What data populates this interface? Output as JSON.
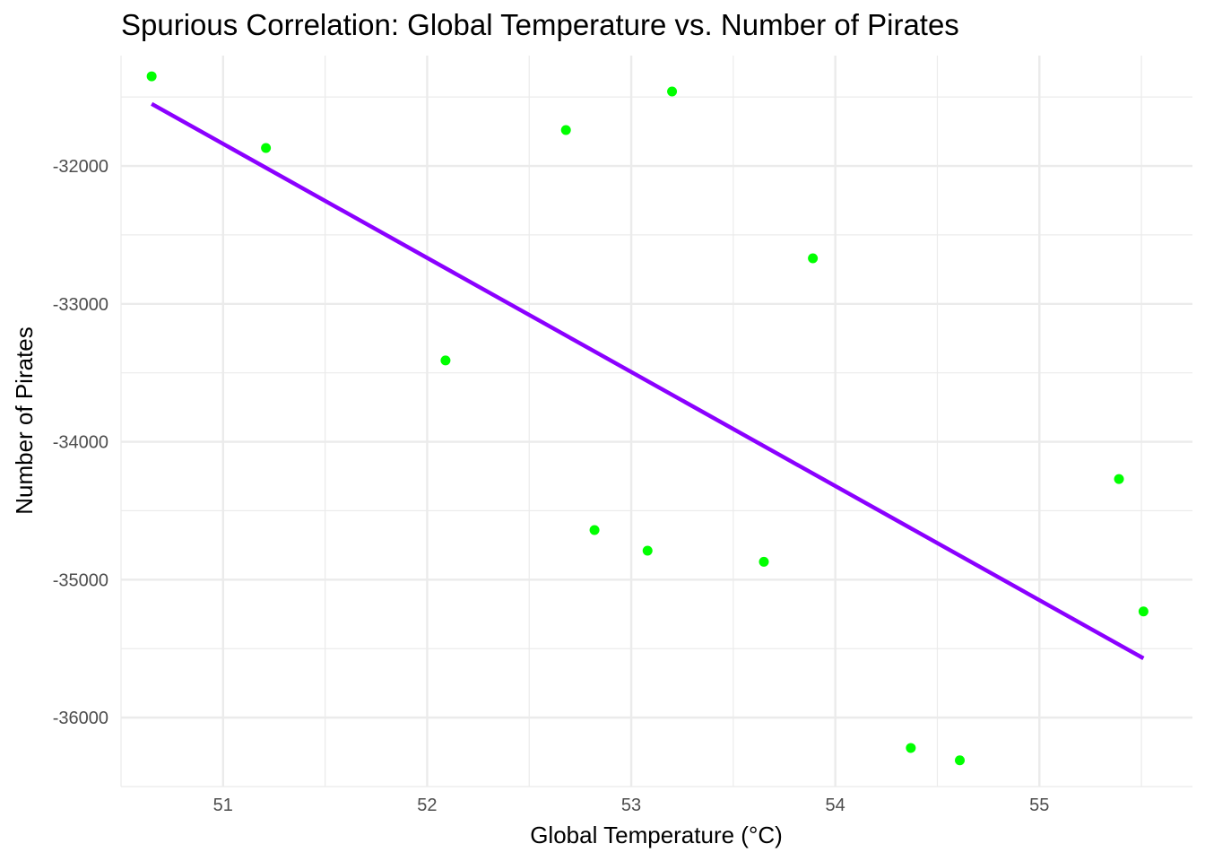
{
  "chart_data": {
    "type": "scatter",
    "title": "Spurious Correlation: Global Temperature vs. Number of Pirates",
    "xlabel": "Global Temperature (°C)",
    "ylabel": "Number of Pirates",
    "xlim": [
      50.5,
      55.75
    ],
    "ylim": [
      -36500,
      -31200
    ],
    "x_ticks": [
      51,
      52,
      53,
      54,
      55
    ],
    "x_tick_labels": [
      "51",
      "52",
      "53",
      "54",
      "55"
    ],
    "y_ticks": [
      -32000,
      -33000,
      -34000,
      -35000,
      -36000
    ],
    "y_tick_labels": [
      "-32000",
      "-33000",
      "-34000",
      "-35000",
      "-36000"
    ],
    "grid": true,
    "legend": "none",
    "point_color": "#00ff00",
    "line_color": "#8b00ff",
    "points": [
      {
        "x": 50.65,
        "y": -31350
      },
      {
        "x": 51.21,
        "y": -31870
      },
      {
        "x": 52.09,
        "y": -33410
      },
      {
        "x": 52.68,
        "y": -31740
      },
      {
        "x": 52.82,
        "y": -34640
      },
      {
        "x": 53.08,
        "y": -34790
      },
      {
        "x": 53.2,
        "y": -31460
      },
      {
        "x": 53.65,
        "y": -34870
      },
      {
        "x": 53.89,
        "y": -32670
      },
      {
        "x": 54.37,
        "y": -36220
      },
      {
        "x": 54.61,
        "y": -36310
      },
      {
        "x": 55.39,
        "y": -34270
      },
      {
        "x": 55.51,
        "y": -35230
      }
    ],
    "fit_line": {
      "x": [
        50.65,
        55.51
      ],
      "y": [
        -31550,
        -35570
      ]
    }
  }
}
